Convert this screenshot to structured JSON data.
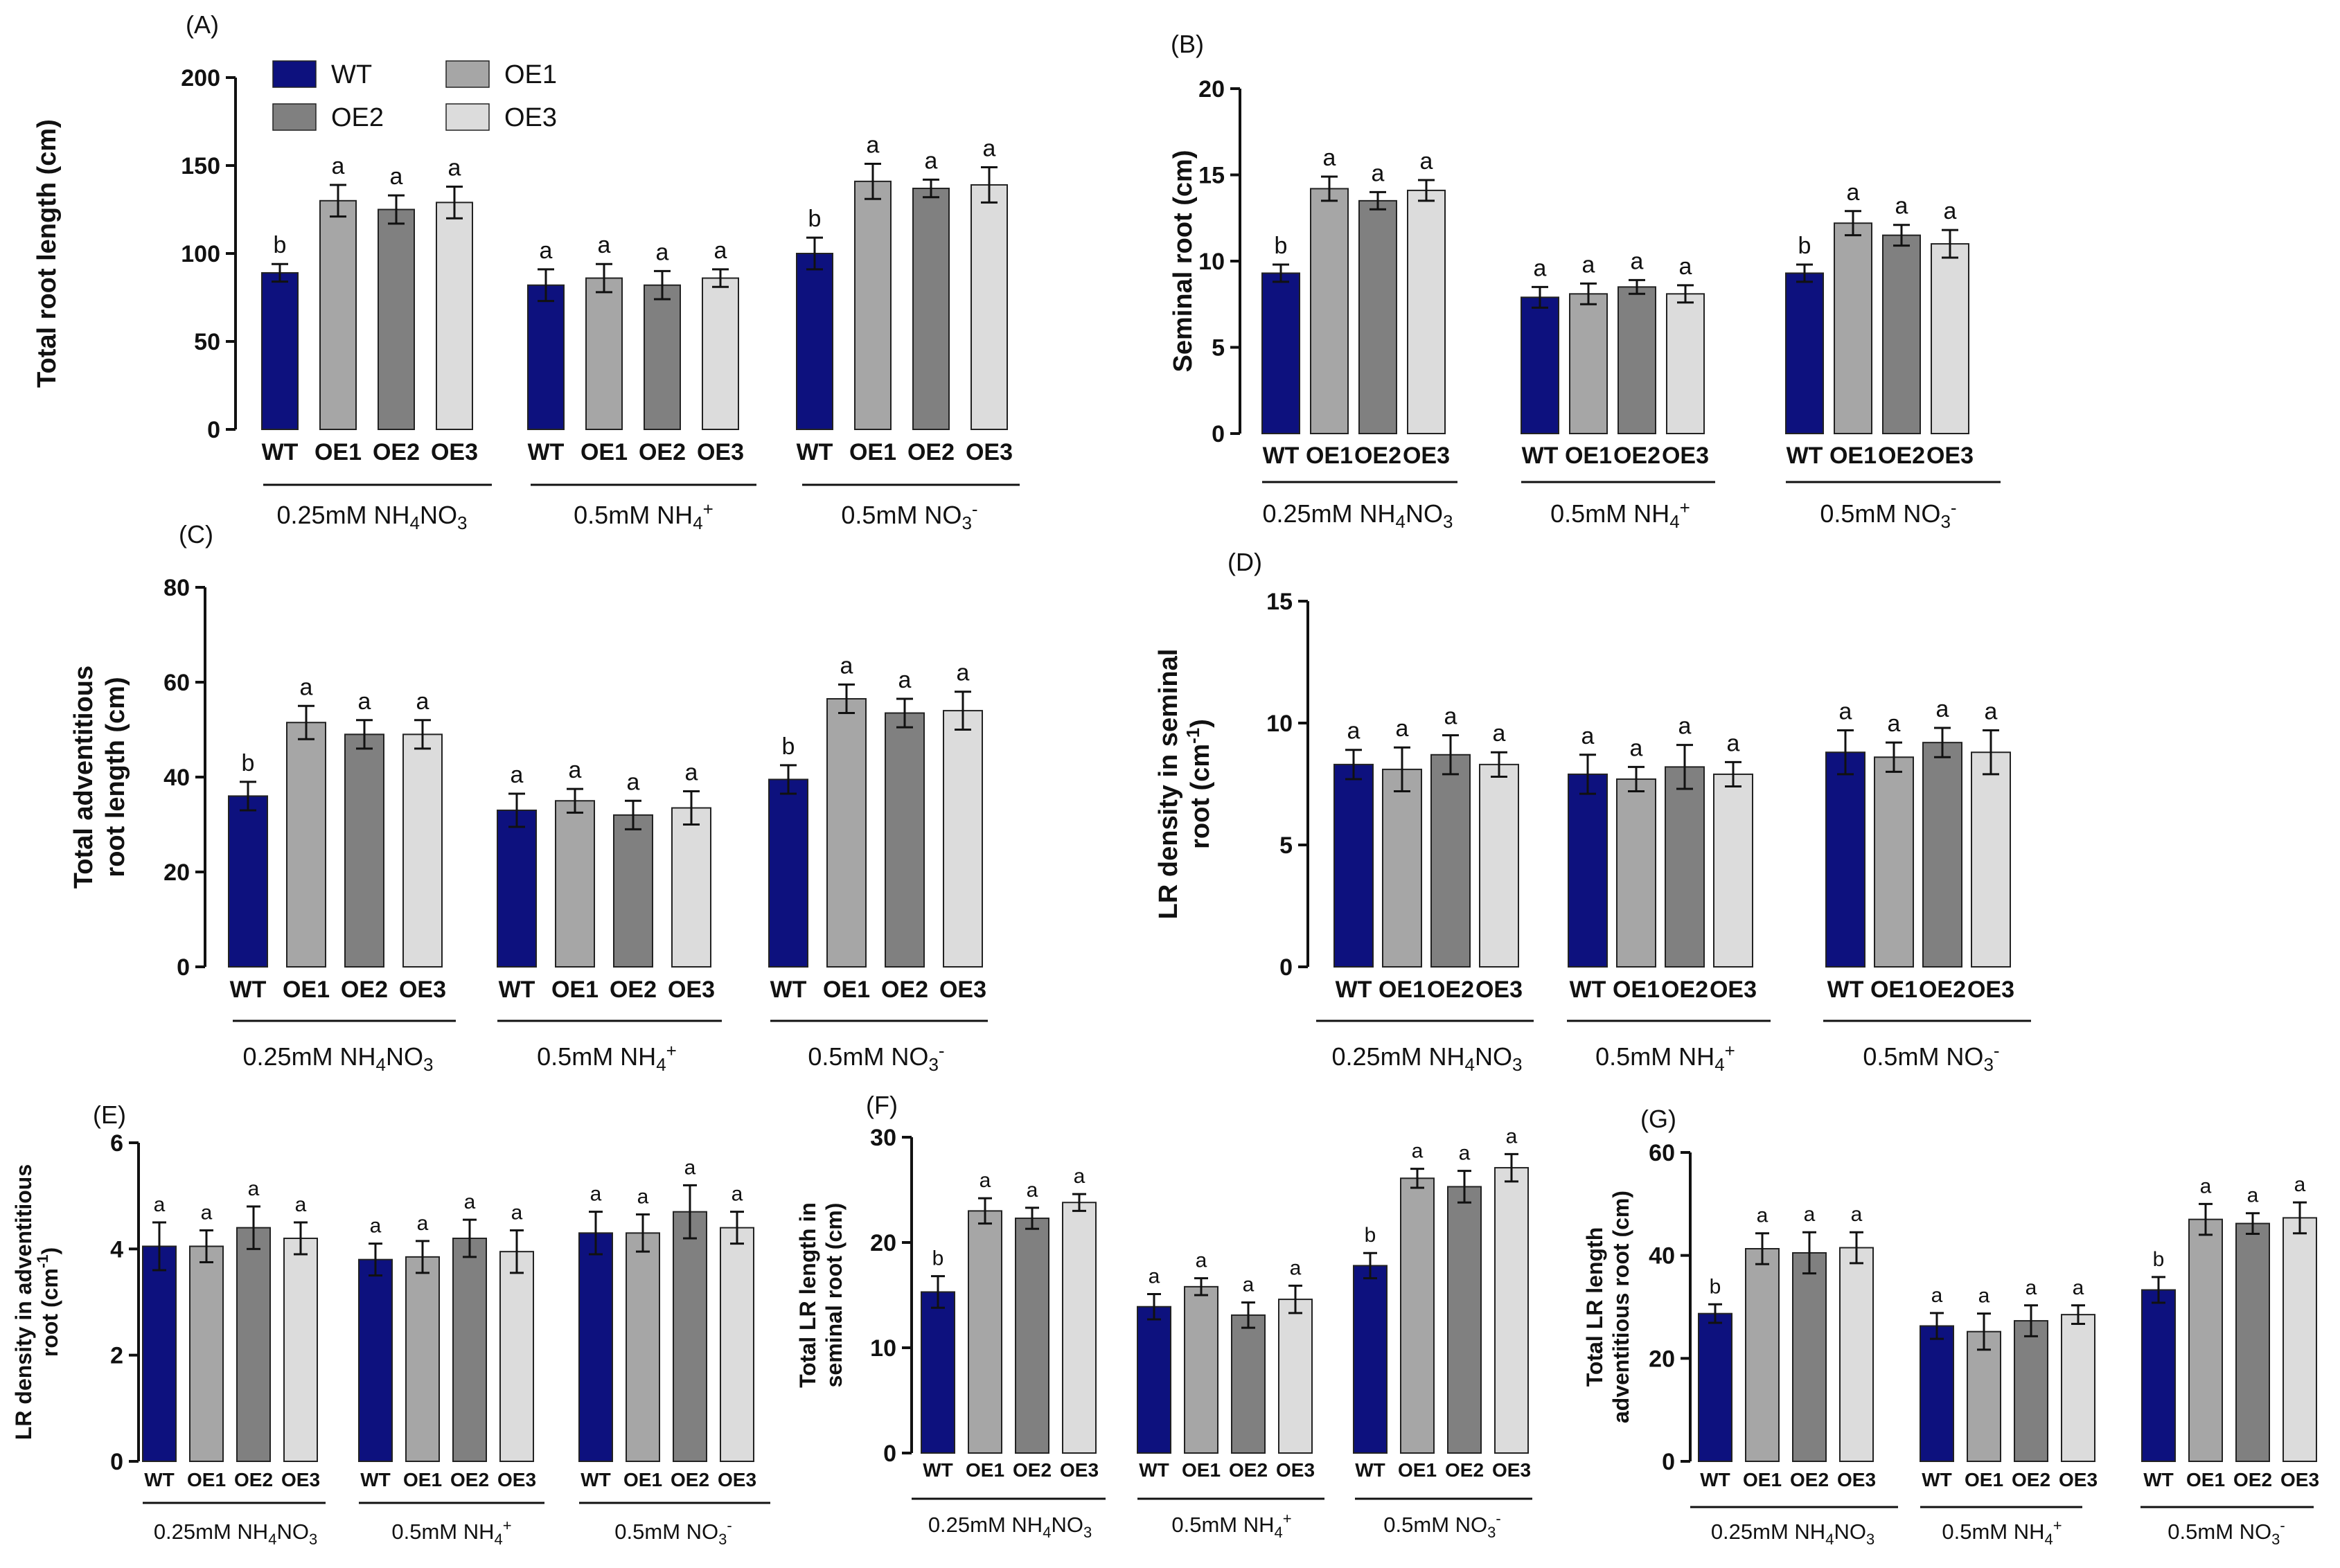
{
  "colors": {
    "WT": "#0d117e",
    "OE1": "#a6a6a6",
    "OE2": "#808080",
    "OE3": "#dcdcdc"
  },
  "legend": [
    "WT",
    "OE1",
    "OE2",
    "OE3"
  ],
  "chart_data": [
    {
      "panel": "(A)",
      "type": "bar",
      "ylabel": "Total root length (cm)",
      "ylim": [
        0,
        200
      ],
      "yticks": [
        "0",
        "50",
        "100",
        "150",
        "200"
      ],
      "categories": [
        "WT",
        "OE1",
        "OE2",
        "OE3"
      ],
      "groups": [
        {
          "name": "0.25mM NH4NO3",
          "values": [
            89,
            130,
            125,
            129
          ],
          "errors": [
            5,
            9,
            8,
            9
          ],
          "sig": [
            "b",
            "a",
            "a",
            "a"
          ]
        },
        {
          "name": "0.5mM NH4+",
          "values": [
            82,
            86,
            82,
            86
          ],
          "errors": [
            9,
            8,
            8,
            5
          ],
          "sig": [
            "a",
            "a",
            "a",
            "a"
          ]
        },
        {
          "name": "0.5mM NO3-",
          "values": [
            100,
            141,
            137,
            139
          ],
          "errors": [
            9,
            10,
            5,
            10
          ],
          "sig": [
            "b",
            "a",
            "a",
            "a"
          ]
        }
      ]
    },
    {
      "panel": "(B)",
      "type": "bar",
      "ylabel": "Seminal root (cm)",
      "ylim": [
        0,
        20
      ],
      "yticks": [
        "0",
        "5",
        "10",
        "15",
        "20"
      ],
      "categories": [
        "WT",
        "OE1",
        "OE2",
        "OE3"
      ],
      "groups": [
        {
          "name": "0.25mM NH4NO3",
          "values": [
            9.3,
            14.2,
            13.5,
            14.1
          ],
          "errors": [
            0.5,
            0.7,
            0.5,
            0.6
          ],
          "sig": [
            "b",
            "a",
            "a",
            "a"
          ]
        },
        {
          "name": "0.5mM NH4+",
          "values": [
            7.9,
            8.1,
            8.5,
            8.1
          ],
          "errors": [
            0.6,
            0.6,
            0.4,
            0.5
          ],
          "sig": [
            "a",
            "a",
            "a",
            "a"
          ]
        },
        {
          "name": "0.5mM NO3-",
          "values": [
            9.3,
            12.2,
            11.5,
            11.0
          ],
          "errors": [
            0.5,
            0.7,
            0.6,
            0.8
          ],
          "sig": [
            "b",
            "a",
            "a",
            "a"
          ]
        }
      ]
    },
    {
      "panel": "(C)",
      "type": "bar",
      "ylabel": "Total adventitious root length (cm)",
      "ylim": [
        0,
        80
      ],
      "yticks": [
        "0",
        "20",
        "40",
        "60",
        "80"
      ],
      "categories": [
        "WT",
        "OE1",
        "OE2",
        "OE3"
      ],
      "groups": [
        {
          "name": "0.25mM NH4NO3",
          "values": [
            36,
            51.5,
            49,
            49
          ],
          "errors": [
            3,
            3.5,
            3,
            3
          ],
          "sig": [
            "b",
            "a",
            "a",
            "a"
          ]
        },
        {
          "name": "0.5mM NH4+",
          "values": [
            33,
            35,
            32,
            33.5
          ],
          "errors": [
            3.5,
            2.5,
            3,
            3.5
          ],
          "sig": [
            "a",
            "a",
            "a",
            "a"
          ]
        },
        {
          "name": "0.5mM NO3-",
          "values": [
            39.5,
            56.5,
            53.5,
            54
          ],
          "errors": [
            3,
            3,
            3,
            4
          ],
          "sig": [
            "b",
            "a",
            "a",
            "a"
          ]
        }
      ]
    },
    {
      "panel": "(D)",
      "type": "bar",
      "ylabel": "LR density in seminal root (cm-1)",
      "ylim": [
        0,
        15
      ],
      "yticks": [
        "0",
        "5",
        "10",
        "15"
      ],
      "categories": [
        "WT",
        "OE1",
        "OE2",
        "OE3"
      ],
      "groups": [
        {
          "name": "0.25mM NH4NO3",
          "values": [
            8.3,
            8.1,
            8.7,
            8.3
          ],
          "errors": [
            0.6,
            0.9,
            0.8,
            0.5
          ],
          "sig": [
            "a",
            "a",
            "a",
            "a"
          ]
        },
        {
          "name": "0.5mM NH4+",
          "values": [
            7.9,
            7.7,
            8.2,
            7.9
          ],
          "errors": [
            0.8,
            0.5,
            0.9,
            0.5
          ],
          "sig": [
            "a",
            "a",
            "a",
            "a"
          ]
        },
        {
          "name": "0.5mM NO3-",
          "values": [
            8.8,
            8.6,
            9.2,
            8.8
          ],
          "errors": [
            0.9,
            0.6,
            0.6,
            0.9
          ],
          "sig": [
            "a",
            "a",
            "a",
            "a"
          ]
        }
      ]
    },
    {
      "panel": "(E)",
      "type": "bar",
      "ylabel": "LR density in adventitious root (cm-1)",
      "ylim": [
        0,
        6
      ],
      "yticks": [
        "0",
        "2",
        "4",
        "6"
      ],
      "categories": [
        "WT",
        "OE1",
        "OE2",
        "OE3"
      ],
      "groups": [
        {
          "name": "0.25mM NH4NO3",
          "values": [
            4.05,
            4.05,
            4.4,
            4.2
          ],
          "errors": [
            0.45,
            0.3,
            0.4,
            0.3
          ],
          "sig": [
            "a",
            "a",
            "a",
            "a"
          ]
        },
        {
          "name": "0.5mM NH4+",
          "values": [
            3.8,
            3.85,
            4.2,
            3.95
          ],
          "errors": [
            0.3,
            0.3,
            0.35,
            0.4
          ],
          "sig": [
            "a",
            "a",
            "a",
            "a"
          ]
        },
        {
          "name": "0.5mM NO3-",
          "values": [
            4.3,
            4.3,
            4.7,
            4.4
          ],
          "errors": [
            0.4,
            0.35,
            0.5,
            0.3
          ],
          "sig": [
            "a",
            "a",
            "a",
            "a"
          ]
        }
      ]
    },
    {
      "panel": "(F)",
      "type": "bar",
      "ylabel": "Total LR length in seminal root (cm)",
      "ylim": [
        0,
        30
      ],
      "yticks": [
        "0",
        "10",
        "20",
        "30"
      ],
      "categories": [
        "WT",
        "OE1",
        "OE2",
        "OE3"
      ],
      "groups": [
        {
          "name": "0.25mM NH4NO3",
          "values": [
            15.3,
            23,
            22.3,
            23.8
          ],
          "errors": [
            1.5,
            1.2,
            1.0,
            0.8
          ],
          "sig": [
            "b",
            "a",
            "a",
            "a"
          ]
        },
        {
          "name": "0.5mM NH4+",
          "values": [
            13.9,
            15.8,
            13.1,
            14.6
          ],
          "errors": [
            1.2,
            0.8,
            1.2,
            1.3
          ],
          "sig": [
            "a",
            "a",
            "a",
            "a"
          ]
        },
        {
          "name": "0.5mM NO3-",
          "values": [
            17.8,
            26.1,
            25.3,
            27.1
          ],
          "errors": [
            1.2,
            0.9,
            1.5,
            1.3
          ],
          "sig": [
            "b",
            "a",
            "a",
            "a"
          ]
        }
      ]
    },
    {
      "panel": "(G)",
      "type": "bar",
      "ylabel": "Total LR length adventitious root (cm)",
      "ylim": [
        0,
        60
      ],
      "yticks": [
        "0",
        "20",
        "40",
        "60"
      ],
      "categories": [
        "WT",
        "OE1",
        "OE2",
        "OE3"
      ],
      "groups": [
        {
          "name": "0.25mM NH4NO3",
          "values": [
            28.7,
            41.3,
            40.5,
            41.5
          ],
          "errors": [
            1.8,
            3,
            4,
            3
          ],
          "sig": [
            "b",
            "a",
            "a",
            "a"
          ]
        },
        {
          "name": "0.5mM NH4+",
          "values": [
            26.3,
            25.2,
            27.3,
            28.5
          ],
          "errors": [
            2.5,
            3.5,
            3,
            1.8
          ],
          "sig": [
            "a",
            "a",
            "a",
            "a"
          ]
        },
        {
          "name": "0.5mM NO3-",
          "values": [
            33.3,
            47,
            46.2,
            47.3
          ],
          "errors": [
            2.5,
            3,
            2,
            3
          ],
          "sig": [
            "b",
            "a",
            "a",
            "a"
          ]
        }
      ]
    }
  ]
}
